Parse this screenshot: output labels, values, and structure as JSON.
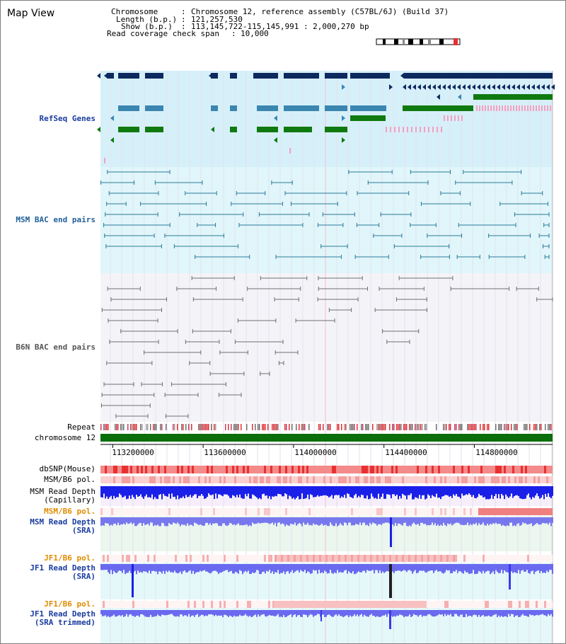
{
  "title": "Map View",
  "info": {
    "chromosome_key": "Chromosome",
    "chromosome_val": "Chromosome 12, reference assembly (C57BL/6J) (Build 37)",
    "length_key": "Length (b.p.)",
    "length_val": "121,257,530",
    "show_key": "Show (b.p.)",
    "show_val": "113,145,722-115,145,991 : 2,000,270 bp",
    "span_key": "Read coverage check span",
    "span_val": "10,000"
  },
  "labels": {
    "refseq": "RefSeq Genes",
    "msm_bac": "MSM BAC end pairs",
    "b6n_bac": "B6N BAC end pairs",
    "repeat": "Repeat",
    "chromosome": "chromosome 12",
    "dbsnp": "dbSNP(Mouse)",
    "msm_b6_pol_1": "MSM/B6 pol.",
    "msm_depth_cap_1": "MSM Read Depth",
    "msm_depth_cap_2": "(Capillary)",
    "msm_b6_pol_2": "MSM/B6 pol.",
    "msm_depth_sra_1": "MSM Read Depth",
    "msm_depth_sra_2": "(SRA)",
    "jf1_b6_pol_1": "JF1/B6 pol.",
    "jf1_depth_sra_1": "JF1 Read Depth",
    "jf1_depth_sra_2": "(SRA)",
    "jf1_b6_pol_2": "JF1/B6 pol.",
    "jf1_depth_trim_1": "JF1 Read Depth",
    "jf1_depth_trim_2": "(SRA trimmed)"
  },
  "axis": {
    "ticks": [
      "113200000",
      "113600000",
      "114000000",
      "114400000",
      "114800000"
    ],
    "tick_values": [
      113200000,
      113600000,
      114000000,
      114400000,
      114800000
    ],
    "range": [
      113145722,
      115145991
    ]
  },
  "colors": {
    "refseq_bg": "#d6f0fa",
    "msm_bg": "#e0f6fa",
    "b6n_bg": "#f4f4f8",
    "refseq_label": "#1a3ca0",
    "msm_label": "#1f5f9a",
    "orange_label": "#e08c00",
    "blue_label": "#1a3ca0",
    "gene_dark": "#0d2a5e",
    "gene_mid": "#3a86b0",
    "gene_green": "#0f7a0f",
    "pink": "#f4a0c0",
    "bac_msm": "#2a7a9a",
    "bac_b6n": "#707070",
    "chrom_bar": "#0a6e0a",
    "depth_capillary": "#1a20e8",
    "depth_sra": "#7878ee",
    "depth_jf1": "#6a6af0"
  }
}
